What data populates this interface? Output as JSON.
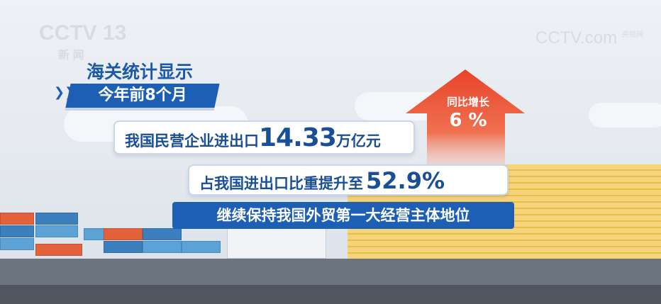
{
  "logos": {
    "channel": "CCTV 13",
    "channel_sub": "新 闻",
    "watermark": "CCTV.com",
    "watermark_sub": "央视网"
  },
  "headline": "海关统计显示",
  "period_banner": "今年前8个月",
  "stat1": {
    "prefix": "我国民营企业进出口",
    "value": "14.33",
    "suffix": "万亿元"
  },
  "stat2": {
    "prefix": "占我国进出口比重提升至",
    "value": "52.9%"
  },
  "stat3": "继续保持我国外贸第一大经营主体地位",
  "growth": {
    "label": "同比增长",
    "value": "6 %"
  },
  "colors": {
    "blue": "#1d5fb5",
    "text_blue": "#1a4f95",
    "arrow_red": "#e8442a",
    "coin_gold": "#f6d57a"
  }
}
